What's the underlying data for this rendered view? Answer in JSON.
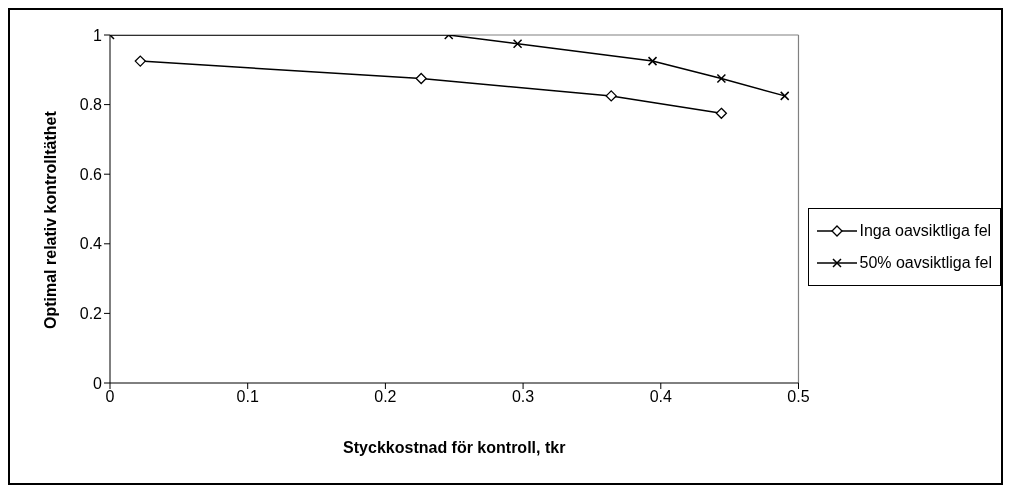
{
  "chart_data": {
    "type": "line",
    "xlabel": "Styckkostnad för kontroll, tkr",
    "ylabel": "Optimal relativ kontrolltäthet",
    "xlim": [
      0,
      0.5
    ],
    "xticks": [
      0,
      0.1,
      0.2,
      0.3,
      0.4,
      0.5
    ],
    "ylim": [
      0,
      1
    ],
    "yticks": [
      0,
      0.2,
      0.4,
      0.6,
      0.8,
      1
    ],
    "grid": false,
    "legend": "right",
    "series": [
      {
        "name": "Inga oavsiktliga fel",
        "color": "#000000",
        "marker": "diamond",
        "x": [
          0.022,
          0.226,
          0.364,
          0.444
        ],
        "values": [
          0.925,
          0.875,
          0.825,
          0.775
        ]
      },
      {
        "name": "50% oavsiktliga fel",
        "color": "#000000",
        "marker": "cross",
        "x": [
          0,
          0.246,
          0.296,
          0.394,
          0.444,
          0.49
        ],
        "values": [
          1,
          1,
          0.975,
          0.925,
          0.875,
          0.825
        ]
      }
    ]
  }
}
